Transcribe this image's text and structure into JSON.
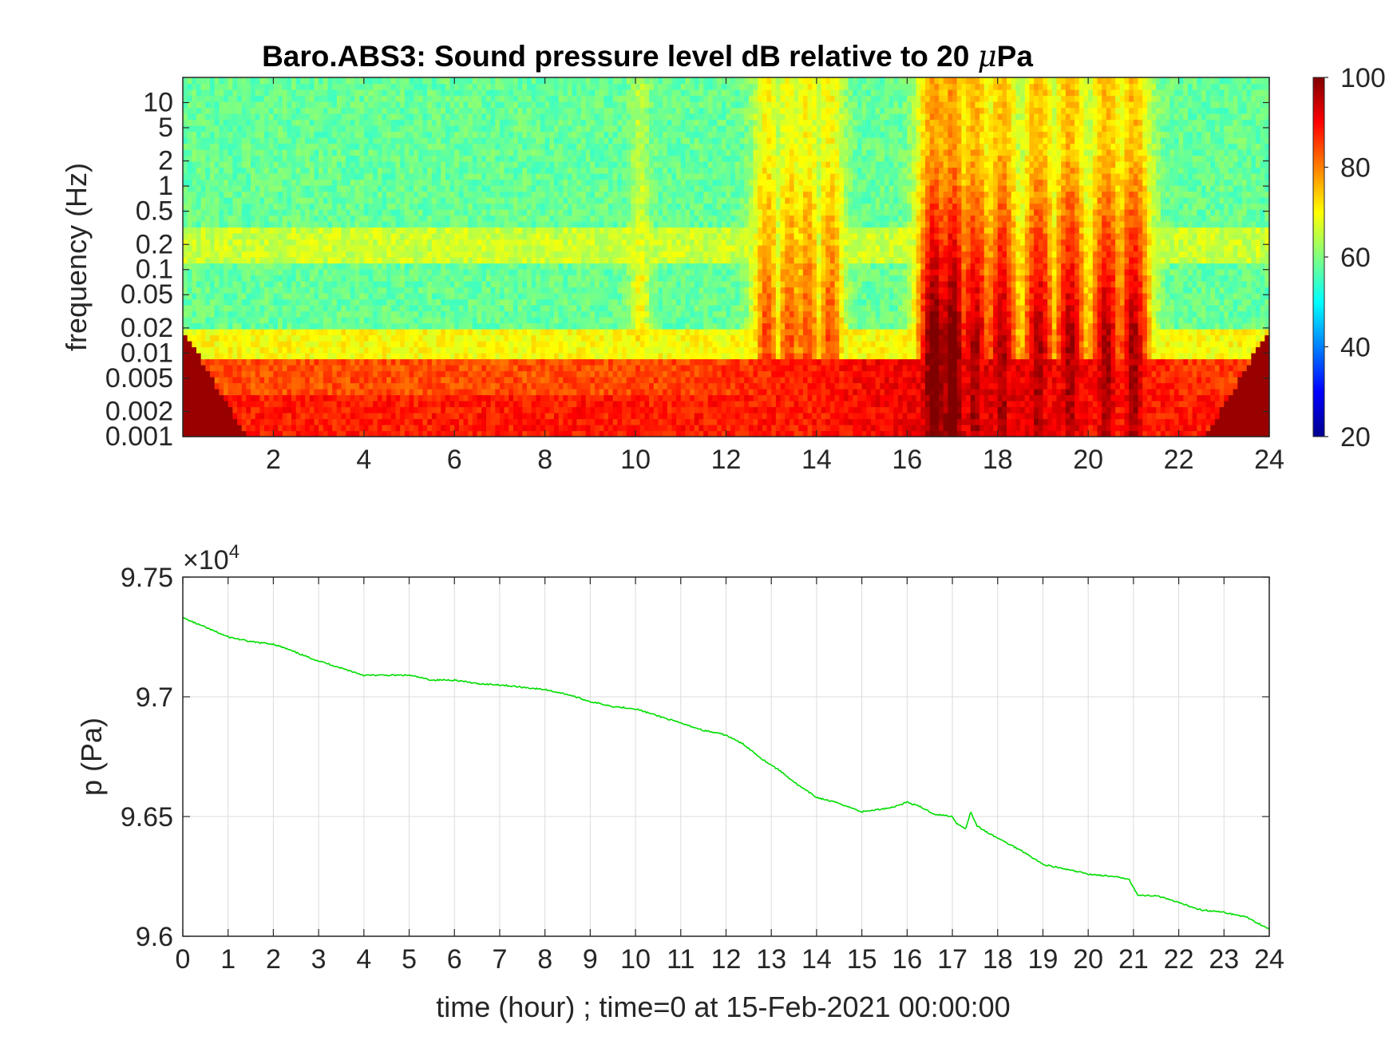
{
  "chart_data": [
    {
      "type": "heatmap",
      "title": "Baro.ABS3: Sound pressure level dB relative to 20 μPa",
      "title_main": "Baro.ABS3: Sound pressure level dB relative to 20 ",
      "title_mu": "μ",
      "title_tail": "Pa",
      "xlabel": "",
      "ylabel": "frequency (Hz)",
      "xlim": [
        0,
        24
      ],
      "ylim": [
        0.001,
        20
      ],
      "yscale": "log",
      "x_ticks": [
        2,
        4,
        6,
        8,
        10,
        12,
        14,
        16,
        18,
        20,
        22,
        24
      ],
      "x_tick_labels": [
        "2",
        "4",
        "6",
        "8",
        "10",
        "12",
        "14",
        "16",
        "18",
        "20",
        "22",
        "24"
      ],
      "y_ticks": [
        0.001,
        0.002,
        0.005,
        0.01,
        0.02,
        0.05,
        0.1,
        0.2,
        0.5,
        1,
        2,
        5,
        10
      ],
      "y_tick_labels": [
        "0.001",
        "0.002",
        "0.005",
        "0.01",
        "0.02",
        "0.05",
        "0.1",
        "0.2",
        "0.5",
        "1",
        "2",
        "5",
        "10"
      ],
      "colorbar": {
        "colormap": "jet",
        "clim": [
          20,
          100
        ],
        "ticks": [
          20,
          40,
          60,
          80,
          100
        ],
        "tick_labels": [
          "20",
          "40",
          "60",
          "80",
          "100"
        ]
      },
      "grid": false,
      "features": [
        {
          "description": "broadband energy bursts",
          "x_range": [
            12.8,
            14.8
          ],
          "peak_db": 82
        },
        {
          "description": "strong broadband bursts",
          "x_range": [
            16.3,
            21.2
          ],
          "peak_db": 95
        },
        {
          "description": "microbarom band",
          "freq_range": [
            0.12,
            0.3
          ],
          "level_db": 66
        }
      ]
    },
    {
      "type": "line",
      "title": "",
      "xlabel": "time (hour) ; time=0 at 15-Feb-2021 00:00:00",
      "ylabel": "p (Pa)",
      "xlim": [
        0,
        24
      ],
      "ylim": [
        96000,
        97500
      ],
      "y_multiplier_label": "×10",
      "y_multiplier_exp": "4",
      "x_ticks": [
        0,
        1,
        2,
        3,
        4,
        5,
        6,
        7,
        8,
        9,
        10,
        11,
        12,
        13,
        14,
        15,
        16,
        17,
        18,
        19,
        20,
        21,
        22,
        23,
        24
      ],
      "x_tick_labels": [
        "0",
        "1",
        "2",
        "3",
        "4",
        "5",
        "6",
        "7",
        "8",
        "9",
        "10",
        "11",
        "12",
        "13",
        "14",
        "15",
        "16",
        "17",
        "18",
        "19",
        "20",
        "21",
        "22",
        "23",
        "24"
      ],
      "y_ticks": [
        96000,
        96500,
        97000,
        97500
      ],
      "y_tick_labels": [
        "9.6",
        "9.65",
        "9.7",
        "9.75"
      ],
      "grid": true,
      "series": [
        {
          "color": "#00dd00",
          "x": [
            0,
            0.5,
            1,
            1.5,
            2,
            2.3,
            2.7,
            3,
            3.5,
            4,
            4.5,
            5,
            5.5,
            6,
            6.5,
            7,
            7.5,
            8,
            8.5,
            9,
            9.5,
            10,
            10.5,
            11,
            11.5,
            12,
            12.4,
            12.8,
            13.2,
            13.6,
            14,
            14.5,
            15,
            15.4,
            15.7,
            16,
            16.3,
            16.6,
            17,
            17.1,
            17.3,
            17.4,
            17.55,
            17.8,
            18.2,
            18.6,
            19,
            19.5,
            20,
            20.5,
            20.9,
            21.1,
            21.5,
            22,
            22.5,
            23,
            23.5,
            24
          ],
          "y": [
            97330,
            97290,
            97250,
            97230,
            97220,
            97200,
            97170,
            97150,
            97120,
            97090,
            97090,
            97090,
            97070,
            97070,
            97055,
            97050,
            97040,
            97030,
            97010,
            96980,
            96960,
            96950,
            96920,
            96890,
            96860,
            96840,
            96800,
            96740,
            96690,
            96630,
            96580,
            96555,
            96520,
            96530,
            96540,
            96560,
            96540,
            96510,
            96500,
            96470,
            96450,
            96520,
            96460,
            96430,
            96390,
            96350,
            96300,
            96280,
            96260,
            96250,
            96240,
            96170,
            96170,
            96140,
            96110,
            96100,
            96080,
            96030
          ]
        }
      ]
    }
  ]
}
